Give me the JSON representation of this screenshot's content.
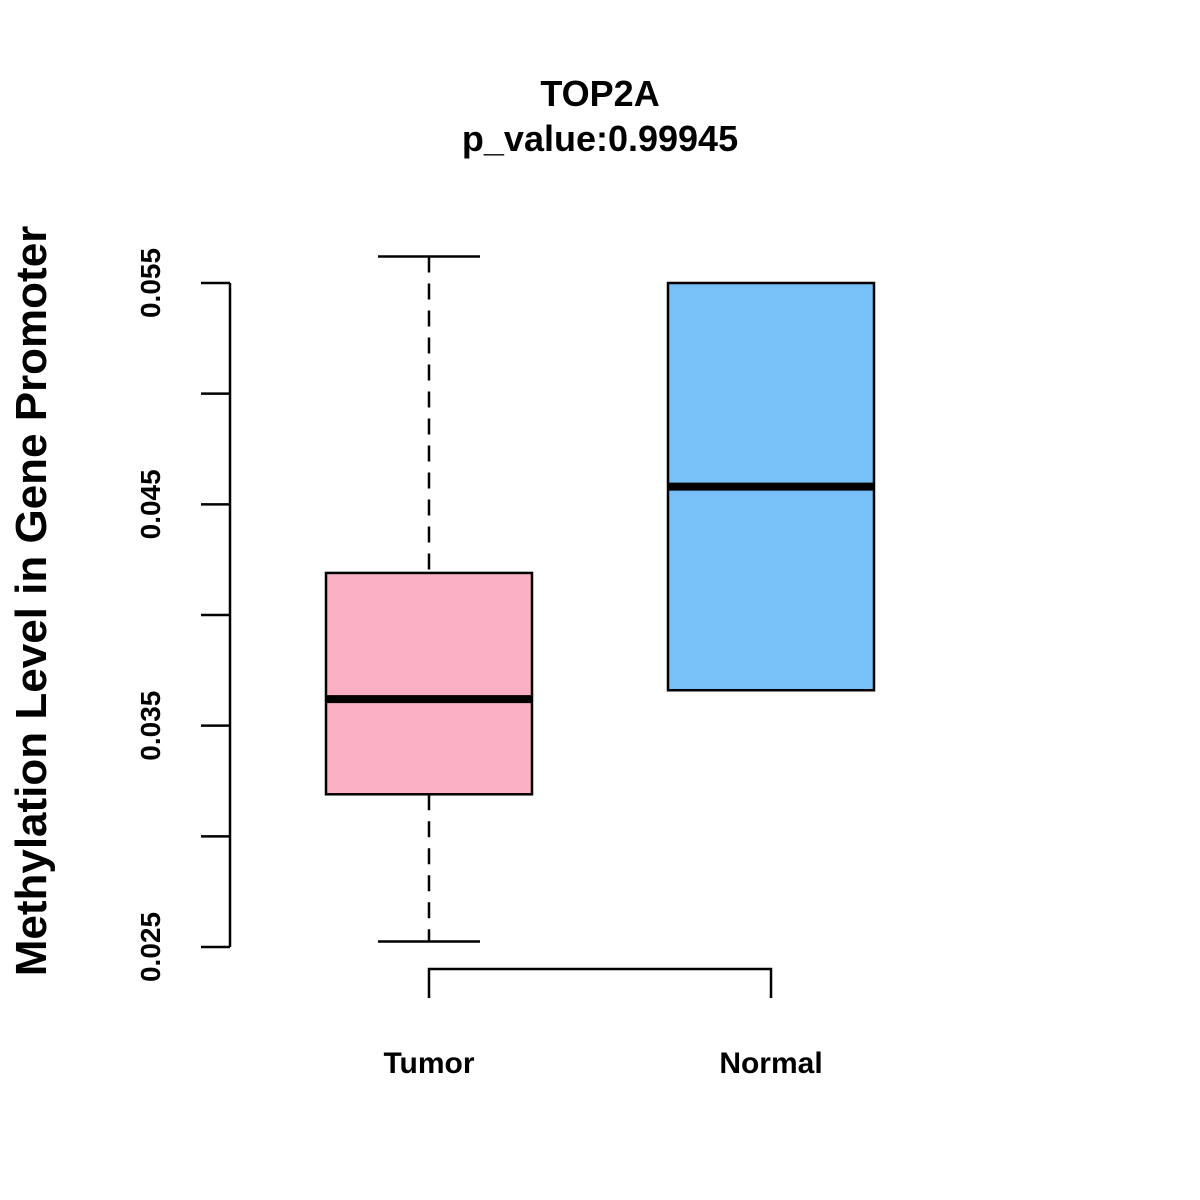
{
  "chart_data": {
    "type": "boxplot",
    "title": "TOP2A",
    "subtitle": "p_value:0.99945",
    "xlabel": "",
    "ylabel": "Methylation Level in Gene Promoter",
    "ylim": [
      0.025,
      0.055
    ],
    "yticks": [
      0.025,
      0.03,
      0.035,
      0.04,
      0.045,
      0.05,
      0.055
    ],
    "ytick_labels": [
      "0.025",
      "",
      "0.035",
      "",
      "0.045",
      "",
      "0.055"
    ],
    "categories": [
      "Tumor",
      "Normal"
    ],
    "boxes": [
      {
        "name": "Tumor",
        "color": "#FBB1C3",
        "whisker_low": 0.02525,
        "q1": 0.0319,
        "median": 0.0362,
        "q3": 0.0419,
        "whisker_high": 0.0562
      },
      {
        "name": "Normal",
        "color": "#77C0F8",
        "whisker_low": 0.0366,
        "q1": 0.0366,
        "median": 0.0458,
        "q3": 0.055,
        "whisker_high": 0.055
      }
    ],
    "significance_bracket": {
      "from": "Tumor",
      "to": "Normal"
    }
  }
}
